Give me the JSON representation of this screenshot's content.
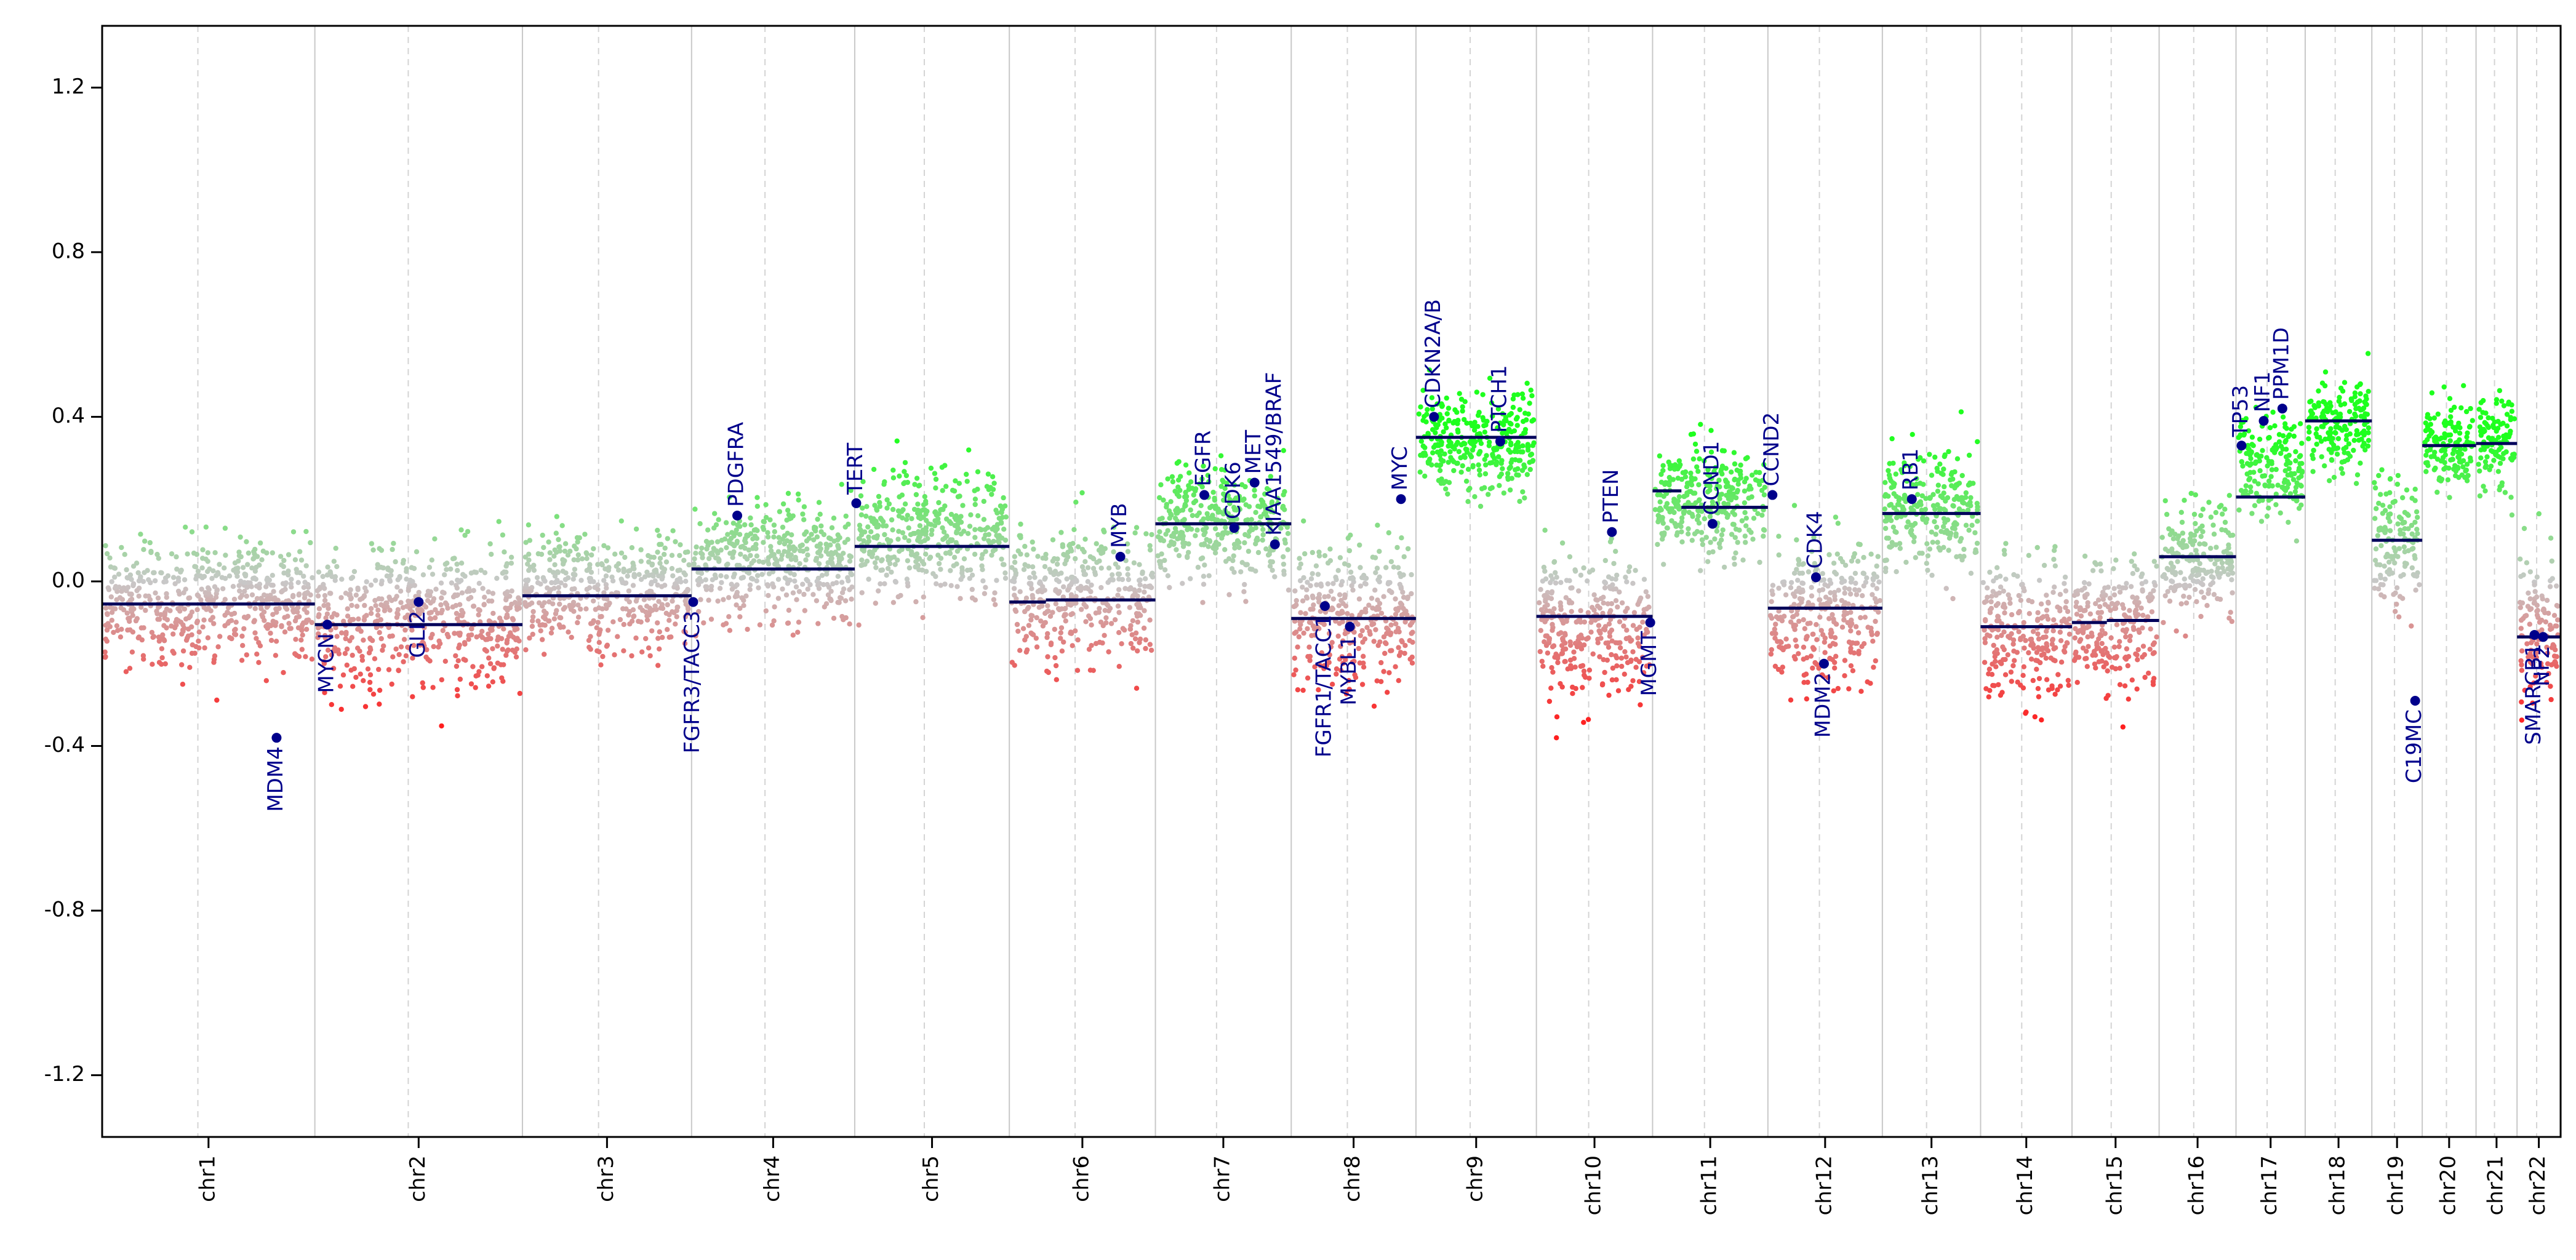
{
  "chart_data": {
    "type": "scatter",
    "title": "",
    "xlabel": "",
    "ylabel": "",
    "ylim": [
      -1.35,
      1.35
    ],
    "yticks": [
      -1.2,
      -0.8,
      -0.4,
      0.0,
      0.4,
      0.8,
      1.2
    ],
    "ytick_labels": [
      "-1.2",
      "-0.8",
      "-0.4",
      "0.0",
      "0.4",
      "0.8",
      "1.2"
    ],
    "colors": {
      "gain": "#22ff22",
      "neutral": "#c8c8c8",
      "loss": "#ff2020",
      "segment": "#00005a",
      "gene": "#00008b"
    },
    "chromosomes": [
      {
        "label": "chr1",
        "length": 249,
        "segments": [
          {
            "start": 0.0,
            "end": 1.0,
            "value": -0.055
          }
        ],
        "mean": -0.05,
        "spread": 0.22
      },
      {
        "label": "chr2",
        "length": 243,
        "segments": [
          {
            "start": 0.0,
            "end": 1.0,
            "value": -0.105
          }
        ],
        "mean": -0.08,
        "spread": 0.24
      },
      {
        "label": "chr3",
        "length": 198,
        "segments": [
          {
            "start": 0.0,
            "end": 1.0,
            "value": -0.035
          }
        ],
        "mean": -0.02,
        "spread": 0.2
      },
      {
        "label": "chr4",
        "length": 191,
        "segments": [
          {
            "start": 0.0,
            "end": 1.0,
            "value": 0.03
          }
        ],
        "mean": 0.05,
        "spread": 0.2
      },
      {
        "label": "chr5",
        "length": 181,
        "segments": [
          {
            "start": 0.0,
            "end": 1.0,
            "value": 0.085
          }
        ],
        "mean": 0.12,
        "spread": 0.22
      },
      {
        "label": "chr6",
        "length": 171,
        "segments": [
          {
            "start": 0.0,
            "end": 0.25,
            "value": -0.05
          },
          {
            "start": 0.25,
            "end": 1.0,
            "value": -0.045
          }
        ],
        "mean": -0.03,
        "spread": 0.22
      },
      {
        "label": "chr7",
        "length": 159,
        "segments": [
          {
            "start": 0.0,
            "end": 1.0,
            "value": 0.14
          }
        ],
        "mean": 0.14,
        "spread": 0.2
      },
      {
        "label": "chr8",
        "length": 146,
        "segments": [
          {
            "start": 0.0,
            "end": 1.0,
            "value": -0.09
          }
        ],
        "mean": -0.08,
        "spread": 0.24
      },
      {
        "label": "chr9",
        "length": 141,
        "segments": [
          {
            "start": 0.0,
            "end": 1.0,
            "value": 0.35
          }
        ],
        "mean": 0.34,
        "spread": 0.17
      },
      {
        "label": "chr10",
        "length": 136,
        "segments": [
          {
            "start": 0.0,
            "end": 1.0,
            "value": -0.085
          }
        ],
        "mean": -0.1,
        "spread": 0.25
      },
      {
        "label": "chr11",
        "length": 135,
        "segments": [
          {
            "start": 0.0,
            "end": 0.25,
            "value": 0.22
          },
          {
            "start": 0.25,
            "end": 1.0,
            "value": 0.18
          }
        ],
        "mean": 0.19,
        "spread": 0.18
      },
      {
        "label": "chr12",
        "length": 134,
        "segments": [
          {
            "start": 0.0,
            "end": 1.0,
            "value": -0.065
          }
        ],
        "mean": -0.07,
        "spread": 0.27
      },
      {
        "label": "chr13",
        "length": 115,
        "segments": [
          {
            "start": 0.0,
            "end": 1.0,
            "value": 0.165
          }
        ],
        "mean": 0.17,
        "spread": 0.2
      },
      {
        "label": "chr14",
        "length": 107,
        "segments": [
          {
            "start": 0.0,
            "end": 1.0,
            "value": -0.11
          }
        ],
        "mean": -0.12,
        "spread": 0.24
      },
      {
        "label": "chr15",
        "length": 102,
        "segments": [
          {
            "start": 0.0,
            "end": 0.4,
            "value": -0.1
          },
          {
            "start": 0.4,
            "end": 1.0,
            "value": -0.095
          }
        ],
        "mean": -0.1,
        "spread": 0.23
      },
      {
        "label": "chr16",
        "length": 90,
        "segments": [
          {
            "start": 0.0,
            "end": 1.0,
            "value": 0.06
          }
        ],
        "mean": 0.06,
        "spread": 0.2
      },
      {
        "label": "chr17",
        "length": 81,
        "segments": [
          {
            "start": 0.0,
            "end": 1.0,
            "value": 0.205
          }
        ],
        "mean": 0.28,
        "spread": 0.17
      },
      {
        "label": "chr18",
        "length": 78,
        "segments": [
          {
            "start": 0.0,
            "end": 1.0,
            "value": 0.39
          }
        ],
        "mean": 0.38,
        "spread": 0.17
      },
      {
        "label": "chr19",
        "length": 59,
        "segments": [
          {
            "start": 0.0,
            "end": 1.0,
            "value": 0.1
          }
        ],
        "mean": 0.1,
        "spread": 0.22
      },
      {
        "label": "chr20",
        "length": 63,
        "segments": [
          {
            "start": 0.0,
            "end": 1.0,
            "value": 0.33
          }
        ],
        "mean": 0.33,
        "spread": 0.16
      },
      {
        "label": "chr21",
        "length": 48,
        "segments": [
          {
            "start": 0.0,
            "end": 1.0,
            "value": 0.335
          }
        ],
        "mean": 0.34,
        "spread": 0.18
      },
      {
        "label": "chr22",
        "length": 51,
        "segments": [
          {
            "start": 0.0,
            "end": 1.0,
            "value": -0.135
          }
        ],
        "mean": -0.12,
        "spread": 0.25
      }
    ],
    "genes": [
      {
        "name": "MDM4",
        "chr": "chr1",
        "pos": 0.82,
        "value": -0.38
      },
      {
        "name": "MYCN",
        "chr": "chr2",
        "pos": 0.06,
        "value": -0.105
      },
      {
        "name": "GLI2",
        "chr": "chr2",
        "pos": 0.5,
        "value": -0.05
      },
      {
        "name": "FGFR3/TACC3",
        "chr": "chr4",
        "pos": 0.01,
        "value": -0.05
      },
      {
        "name": "PDGFRA",
        "chr": "chr4",
        "pos": 0.28,
        "value": 0.16
      },
      {
        "name": "TERT",
        "chr": "chr5",
        "pos": 0.01,
        "value": 0.19
      },
      {
        "name": "MYB",
        "chr": "chr6",
        "pos": 0.76,
        "value": 0.06
      },
      {
        "name": "EGFR",
        "chr": "chr7",
        "pos": 0.36,
        "value": 0.21
      },
      {
        "name": "CDK6",
        "chr": "chr7",
        "pos": 0.58,
        "value": 0.13
      },
      {
        "name": "MET",
        "chr": "chr7",
        "pos": 0.73,
        "value": 0.24
      },
      {
        "name": "KIAA1549/BRAF",
        "chr": "chr7",
        "pos": 0.88,
        "value": 0.09
      },
      {
        "name": "FGFR1/TACC1",
        "chr": "chr8",
        "pos": 0.27,
        "value": -0.06
      },
      {
        "name": "MYBL1",
        "chr": "chr8",
        "pos": 0.47,
        "value": -0.11
      },
      {
        "name": "MYC",
        "chr": "chr8",
        "pos": 0.88,
        "value": 0.2
      },
      {
        "name": "CDKN2A/B",
        "chr": "chr9",
        "pos": 0.15,
        "value": 0.4
      },
      {
        "name": "PTCH1",
        "chr": "chr9",
        "pos": 0.7,
        "value": 0.34
      },
      {
        "name": "PTEN",
        "chr": "chr10",
        "pos": 0.65,
        "value": 0.12
      },
      {
        "name": "MGMT",
        "chr": "chr10",
        "pos": 0.98,
        "value": -0.1
      },
      {
        "name": "CCND1",
        "chr": "chr11",
        "pos": 0.52,
        "value": 0.14
      },
      {
        "name": "CCND2",
        "chr": "chr12",
        "pos": 0.04,
        "value": 0.21
      },
      {
        "name": "CDK4",
        "chr": "chr12",
        "pos": 0.42,
        "value": 0.01
      },
      {
        "name": "MDM2",
        "chr": "chr12",
        "pos": 0.49,
        "value": -0.2
      },
      {
        "name": "RB1",
        "chr": "chr13",
        "pos": 0.3,
        "value": 0.2
      },
      {
        "name": "TP53",
        "chr": "chr17",
        "pos": 0.08,
        "value": 0.33
      },
      {
        "name": "NF1",
        "chr": "chr17",
        "pos": 0.4,
        "value": 0.39
      },
      {
        "name": "PPM1D",
        "chr": "chr17",
        "pos": 0.67,
        "value": 0.42
      },
      {
        "name": "C19MC",
        "chr": "chr19",
        "pos": 0.86,
        "value": -0.29
      },
      {
        "name": "SMARCB1",
        "chr": "chr22",
        "pos": 0.4,
        "value": -0.13
      },
      {
        "name": "NF2",
        "chr": "chr22",
        "pos": 0.6,
        "value": -0.135
      }
    ]
  }
}
